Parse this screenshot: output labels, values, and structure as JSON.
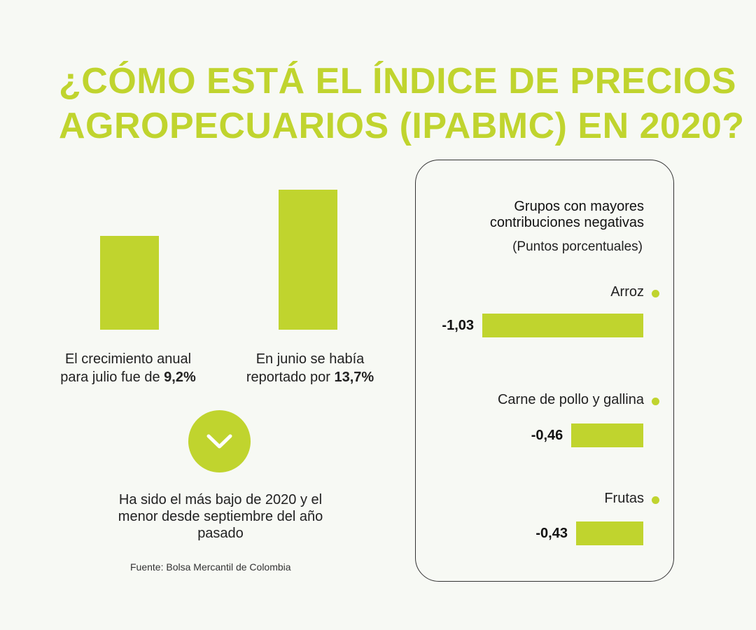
{
  "header": {
    "title_line1": "¿CÓMO ESTÁ EL ÍNDICE DE PRECIOS",
    "title_line2": "AGROPECUARIOS (IPABMC) EN 2020?"
  },
  "colors": {
    "accent": "#c0d42e",
    "background": "#f7f9f4",
    "text": "#1a1a1a"
  },
  "growth": {
    "items": [
      {
        "line1": "El crecimiento anual",
        "line2_prefix": "para julio fue de ",
        "value_label": "9,2%",
        "value": 9.2
      },
      {
        "line1": "En junio se había",
        "line2_prefix": "reportado por ",
        "value_label": "13,7%",
        "value": 13.7
      }
    ],
    "arrow_icon": "chevron-down-icon",
    "note": "Ha sido el más bajo de 2020 y el menor desde septiembre del año pasado",
    "source": "Fuente: Bolsa Mercantil de Colombia"
  },
  "panel": {
    "title": "Grupos con mayores contribuciones negativas",
    "unit": "(Puntos porcentuales)"
  },
  "chart_data": [
    {
      "type": "bar",
      "orientation": "vertical",
      "categories": [
        "El crecimiento anual para julio fue de 9,2%",
        "En junio se había reportado por 13,7%"
      ],
      "values": [
        9.2,
        13.7
      ],
      "unit": "%"
    },
    {
      "type": "bar",
      "orientation": "horizontal",
      "title": "Grupos con mayores contribuciones negativas",
      "ylabel": "(Puntos porcentuales)",
      "categories": [
        "Arroz",
        "Carne de pollo y gallina",
        "Frutas"
      ],
      "values": [
        -1.03,
        -0.46,
        -0.43
      ],
      "value_labels": [
        "-1,03",
        "-0,46",
        "-0,43"
      ]
    }
  ]
}
